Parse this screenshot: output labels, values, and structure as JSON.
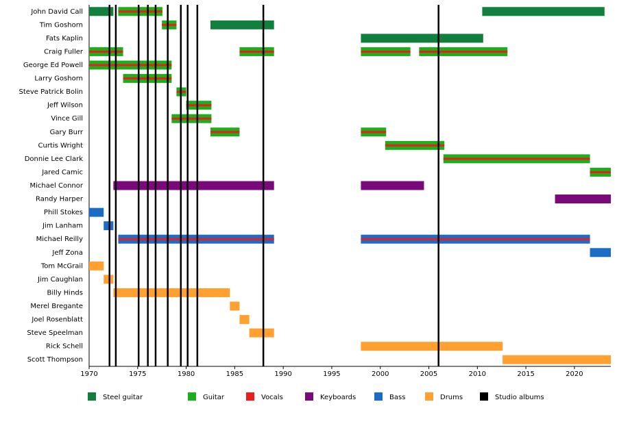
{
  "chart_data": {
    "type": "timeline",
    "xlim": [
      1970,
      2023.75
    ],
    "xticks": [
      1970,
      1975,
      1980,
      1985,
      1990,
      1995,
      2000,
      2005,
      2010,
      2015,
      2020
    ],
    "roles": [
      {
        "name": "Steel guitar",
        "color": "#137f3e"
      },
      {
        "name": "Guitar",
        "color": "#1bb01b"
      },
      {
        "name": "Vocals",
        "color": "#ee1c1c"
      },
      {
        "name": "Keyboards",
        "color": "#7a0a7a"
      },
      {
        "name": "Bass",
        "color": "#1a6cc6"
      },
      {
        "name": "Drums",
        "color": "#ffa030"
      }
    ],
    "studio_albums": {
      "name": "Studio albums",
      "color": "#000000",
      "values": [
        1972.1,
        1972.75,
        1975.1,
        1976.05,
        1976.85,
        1978.1,
        1979.45,
        1980.15,
        1981.15,
        1987.95,
        2006.0
      ]
    },
    "members": [
      {
        "name": "John David Call",
        "periods": [
          {
            "start": 1970,
            "end": 1972.5,
            "roles": [
              "Steel guitar"
            ]
          },
          {
            "start": 1973,
            "end": 1977.55,
            "roles": [
              "Guitar",
              "Vocals"
            ]
          },
          {
            "start": 2010.5,
            "end": 2023.1,
            "roles": [
              "Steel guitar"
            ]
          }
        ]
      },
      {
        "name": "Tim Goshorn",
        "periods": [
          {
            "start": 1977.5,
            "end": 1979,
            "roles": [
              "Guitar",
              "Vocals"
            ]
          },
          {
            "start": 1982.5,
            "end": 1989.05,
            "roles": [
              "Steel guitar"
            ]
          }
        ]
      },
      {
        "name": "Fats Kaplin",
        "periods": [
          {
            "start": 1998,
            "end": 2010.6,
            "roles": [
              "Steel guitar"
            ]
          }
        ]
      },
      {
        "name": "Craig Fuller",
        "periods": [
          {
            "start": 1970,
            "end": 1973.5,
            "roles": [
              "Guitar",
              "Vocals"
            ]
          },
          {
            "start": 1985.5,
            "end": 1989.05,
            "roles": [
              "Guitar",
              "Vocals"
            ]
          },
          {
            "start": 1998,
            "end": 2003.1,
            "roles": [
              "Guitar",
              "Vocals"
            ]
          },
          {
            "start": 2004,
            "end": 2013.1,
            "roles": [
              "Guitar",
              "Vocals"
            ]
          }
        ]
      },
      {
        "name": "George Ed Powell",
        "periods": [
          {
            "start": 1970,
            "end": 1978.5,
            "roles": [
              "Guitar",
              "Vocals"
            ]
          }
        ]
      },
      {
        "name": "Larry Goshorn",
        "periods": [
          {
            "start": 1973.5,
            "end": 1978.5,
            "roles": [
              "Guitar",
              "Vocals"
            ]
          }
        ]
      },
      {
        "name": "Steve Patrick Bolin",
        "periods": [
          {
            "start": 1979,
            "end": 1980,
            "roles": [
              "Guitar",
              "Vocals"
            ]
          }
        ]
      },
      {
        "name": "Jeff Wilson",
        "periods": [
          {
            "start": 1980,
            "end": 1982.6,
            "roles": [
              "Guitar",
              "Vocals"
            ]
          }
        ]
      },
      {
        "name": "Vince Gill",
        "periods": [
          {
            "start": 1978.5,
            "end": 1982.6,
            "roles": [
              "Guitar",
              "Vocals"
            ]
          }
        ]
      },
      {
        "name": "Gary Burr",
        "periods": [
          {
            "start": 1982.5,
            "end": 1985.5,
            "roles": [
              "Guitar",
              "Vocals"
            ]
          },
          {
            "start": 1998,
            "end": 2000.6,
            "roles": [
              "Guitar",
              "Vocals"
            ]
          }
        ]
      },
      {
        "name": "Curtis Wright",
        "periods": [
          {
            "start": 2000.5,
            "end": 2006.6,
            "roles": [
              "Guitar",
              "Vocals"
            ]
          }
        ]
      },
      {
        "name": "Donnie Lee Clark",
        "periods": [
          {
            "start": 2006.5,
            "end": 2021.6,
            "roles": [
              "Guitar",
              "Vocals"
            ]
          }
        ]
      },
      {
        "name": "Jared Camic",
        "periods": [
          {
            "start": 2021.6,
            "end": 2023.75,
            "roles": [
              "Guitar",
              "Vocals"
            ]
          }
        ]
      },
      {
        "name": "Michael Connor",
        "periods": [
          {
            "start": 1972.5,
            "end": 1989.05,
            "roles": [
              "Keyboards"
            ]
          },
          {
            "start": 1998,
            "end": 2004.5,
            "roles": [
              "Keyboards"
            ]
          }
        ]
      },
      {
        "name": "Randy Harper",
        "periods": [
          {
            "start": 2018,
            "end": 2023.75,
            "roles": [
              "Keyboards"
            ]
          }
        ]
      },
      {
        "name": "Phill Stokes",
        "periods": [
          {
            "start": 1970,
            "end": 1971.5,
            "roles": [
              "Bass"
            ]
          }
        ]
      },
      {
        "name": "Jim Lanham",
        "periods": [
          {
            "start": 1971.5,
            "end": 1972.5,
            "roles": [
              "Bass"
            ]
          }
        ]
      },
      {
        "name": "Michael Reilly",
        "periods": [
          {
            "start": 1973,
            "end": 1989.05,
            "roles": [
              "Bass",
              "Vocals"
            ]
          },
          {
            "start": 1998,
            "end": 2021.6,
            "roles": [
              "Bass",
              "Vocals"
            ]
          }
        ]
      },
      {
        "name": "Jeff Zona",
        "periods": [
          {
            "start": 2021.6,
            "end": 2023.75,
            "roles": [
              "Bass"
            ]
          }
        ]
      },
      {
        "name": "Tom McGrail",
        "periods": [
          {
            "start": 1970,
            "end": 1971.5,
            "roles": [
              "Drums"
            ]
          }
        ]
      },
      {
        "name": "Jim Caughlan",
        "periods": [
          {
            "start": 1971.5,
            "end": 1972.5,
            "roles": [
              "Drums"
            ]
          }
        ]
      },
      {
        "name": "Billy Hinds",
        "periods": [
          {
            "start": 1972.5,
            "end": 1984.5,
            "roles": [
              "Drums"
            ]
          }
        ]
      },
      {
        "name": "Merel Bregante",
        "periods": [
          {
            "start": 1984.5,
            "end": 1985.5,
            "roles": [
              "Drums"
            ]
          }
        ]
      },
      {
        "name": "Joel Rosenblatt",
        "periods": [
          {
            "start": 1985.5,
            "end": 1986.5,
            "roles": [
              "Drums"
            ]
          }
        ]
      },
      {
        "name": "Steve Speelman",
        "periods": [
          {
            "start": 1986.5,
            "end": 1989.05,
            "roles": [
              "Drums"
            ]
          }
        ]
      },
      {
        "name": "Rick Schell",
        "periods": [
          {
            "start": 1998,
            "end": 2012.6,
            "roles": [
              "Drums"
            ]
          }
        ]
      },
      {
        "name": "Scott Thompson",
        "periods": [
          {
            "start": 2012.6,
            "end": 2023.75,
            "roles": [
              "Drums"
            ]
          }
        ]
      }
    ]
  }
}
